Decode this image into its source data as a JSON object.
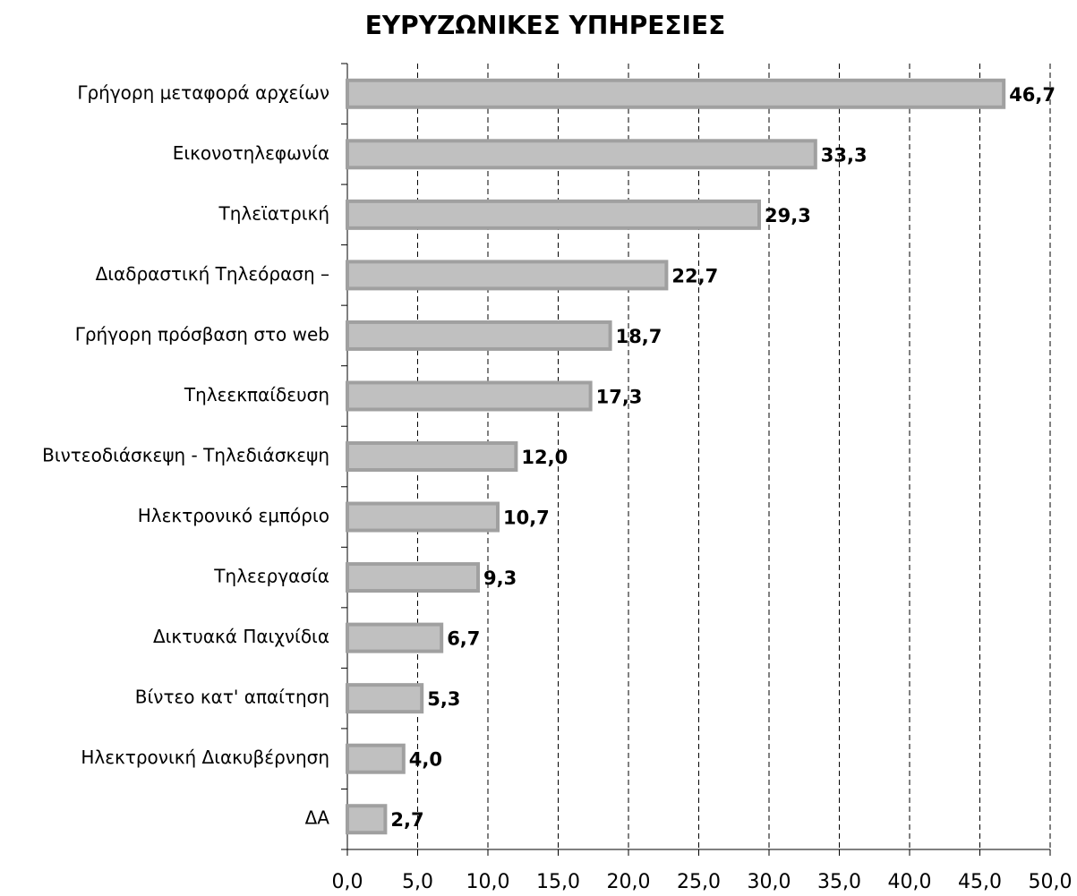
{
  "chart_data": {
    "type": "bar",
    "orientation": "horizontal",
    "title": "ΕΥΡΥΖΩΝΙΚΕΣ ΥΠΗΡΕΣΙΕΣ",
    "categories": [
      "Γρήγορη μεταφορά αρχείων",
      "Εικονοτηλεφωνία",
      "Τηλεϊατρική",
      "Διαδραστική Τηλεόραση –",
      "Γρήγορη πρόσβαση στο web",
      "Τηλεεκπαίδευση",
      "Βιντεοδιάσκεψη - Τηλεδιάσκεψη",
      "Ηλεκτρονικό εμπόριο",
      "Τηλεεργασία",
      "Δικτυακά Παιχνίδια",
      "Βίντεο κατ' απαίτηση",
      "Ηλεκτρονική Διακυβέρνηση",
      "ΔΑ"
    ],
    "values": [
      46.7,
      33.3,
      29.3,
      22.7,
      18.7,
      17.3,
      12.0,
      10.7,
      9.3,
      6.7,
      5.3,
      4.0,
      2.7
    ],
    "value_labels": [
      "46,7",
      "33,3",
      "29,3",
      "22,7",
      "18,7",
      "17,3",
      "12,0",
      "10,7",
      "9,3",
      "6,7",
      "5,3",
      "4,0",
      "2,7"
    ],
    "color": "#c0c0c0",
    "edge_color": "#a0a0a0",
    "xlim": [
      0,
      50
    ],
    "xticks": [
      {
        "value": 0,
        "label": "0,0"
      },
      {
        "value": 5,
        "label": "5,0"
      },
      {
        "value": 10,
        "label": "10,0"
      },
      {
        "value": 15,
        "label": "15,0"
      },
      {
        "value": 20,
        "label": "20,0"
      },
      {
        "value": 25,
        "label": "25,0"
      },
      {
        "value": 30,
        "label": "30,0"
      },
      {
        "value": 35,
        "label": "35,0"
      },
      {
        "value": 40,
        "label": "40,0"
      },
      {
        "value": 45,
        "label": "45,0"
      },
      {
        "value": 50,
        "label": "50,0"
      }
    ],
    "grid": true
  }
}
